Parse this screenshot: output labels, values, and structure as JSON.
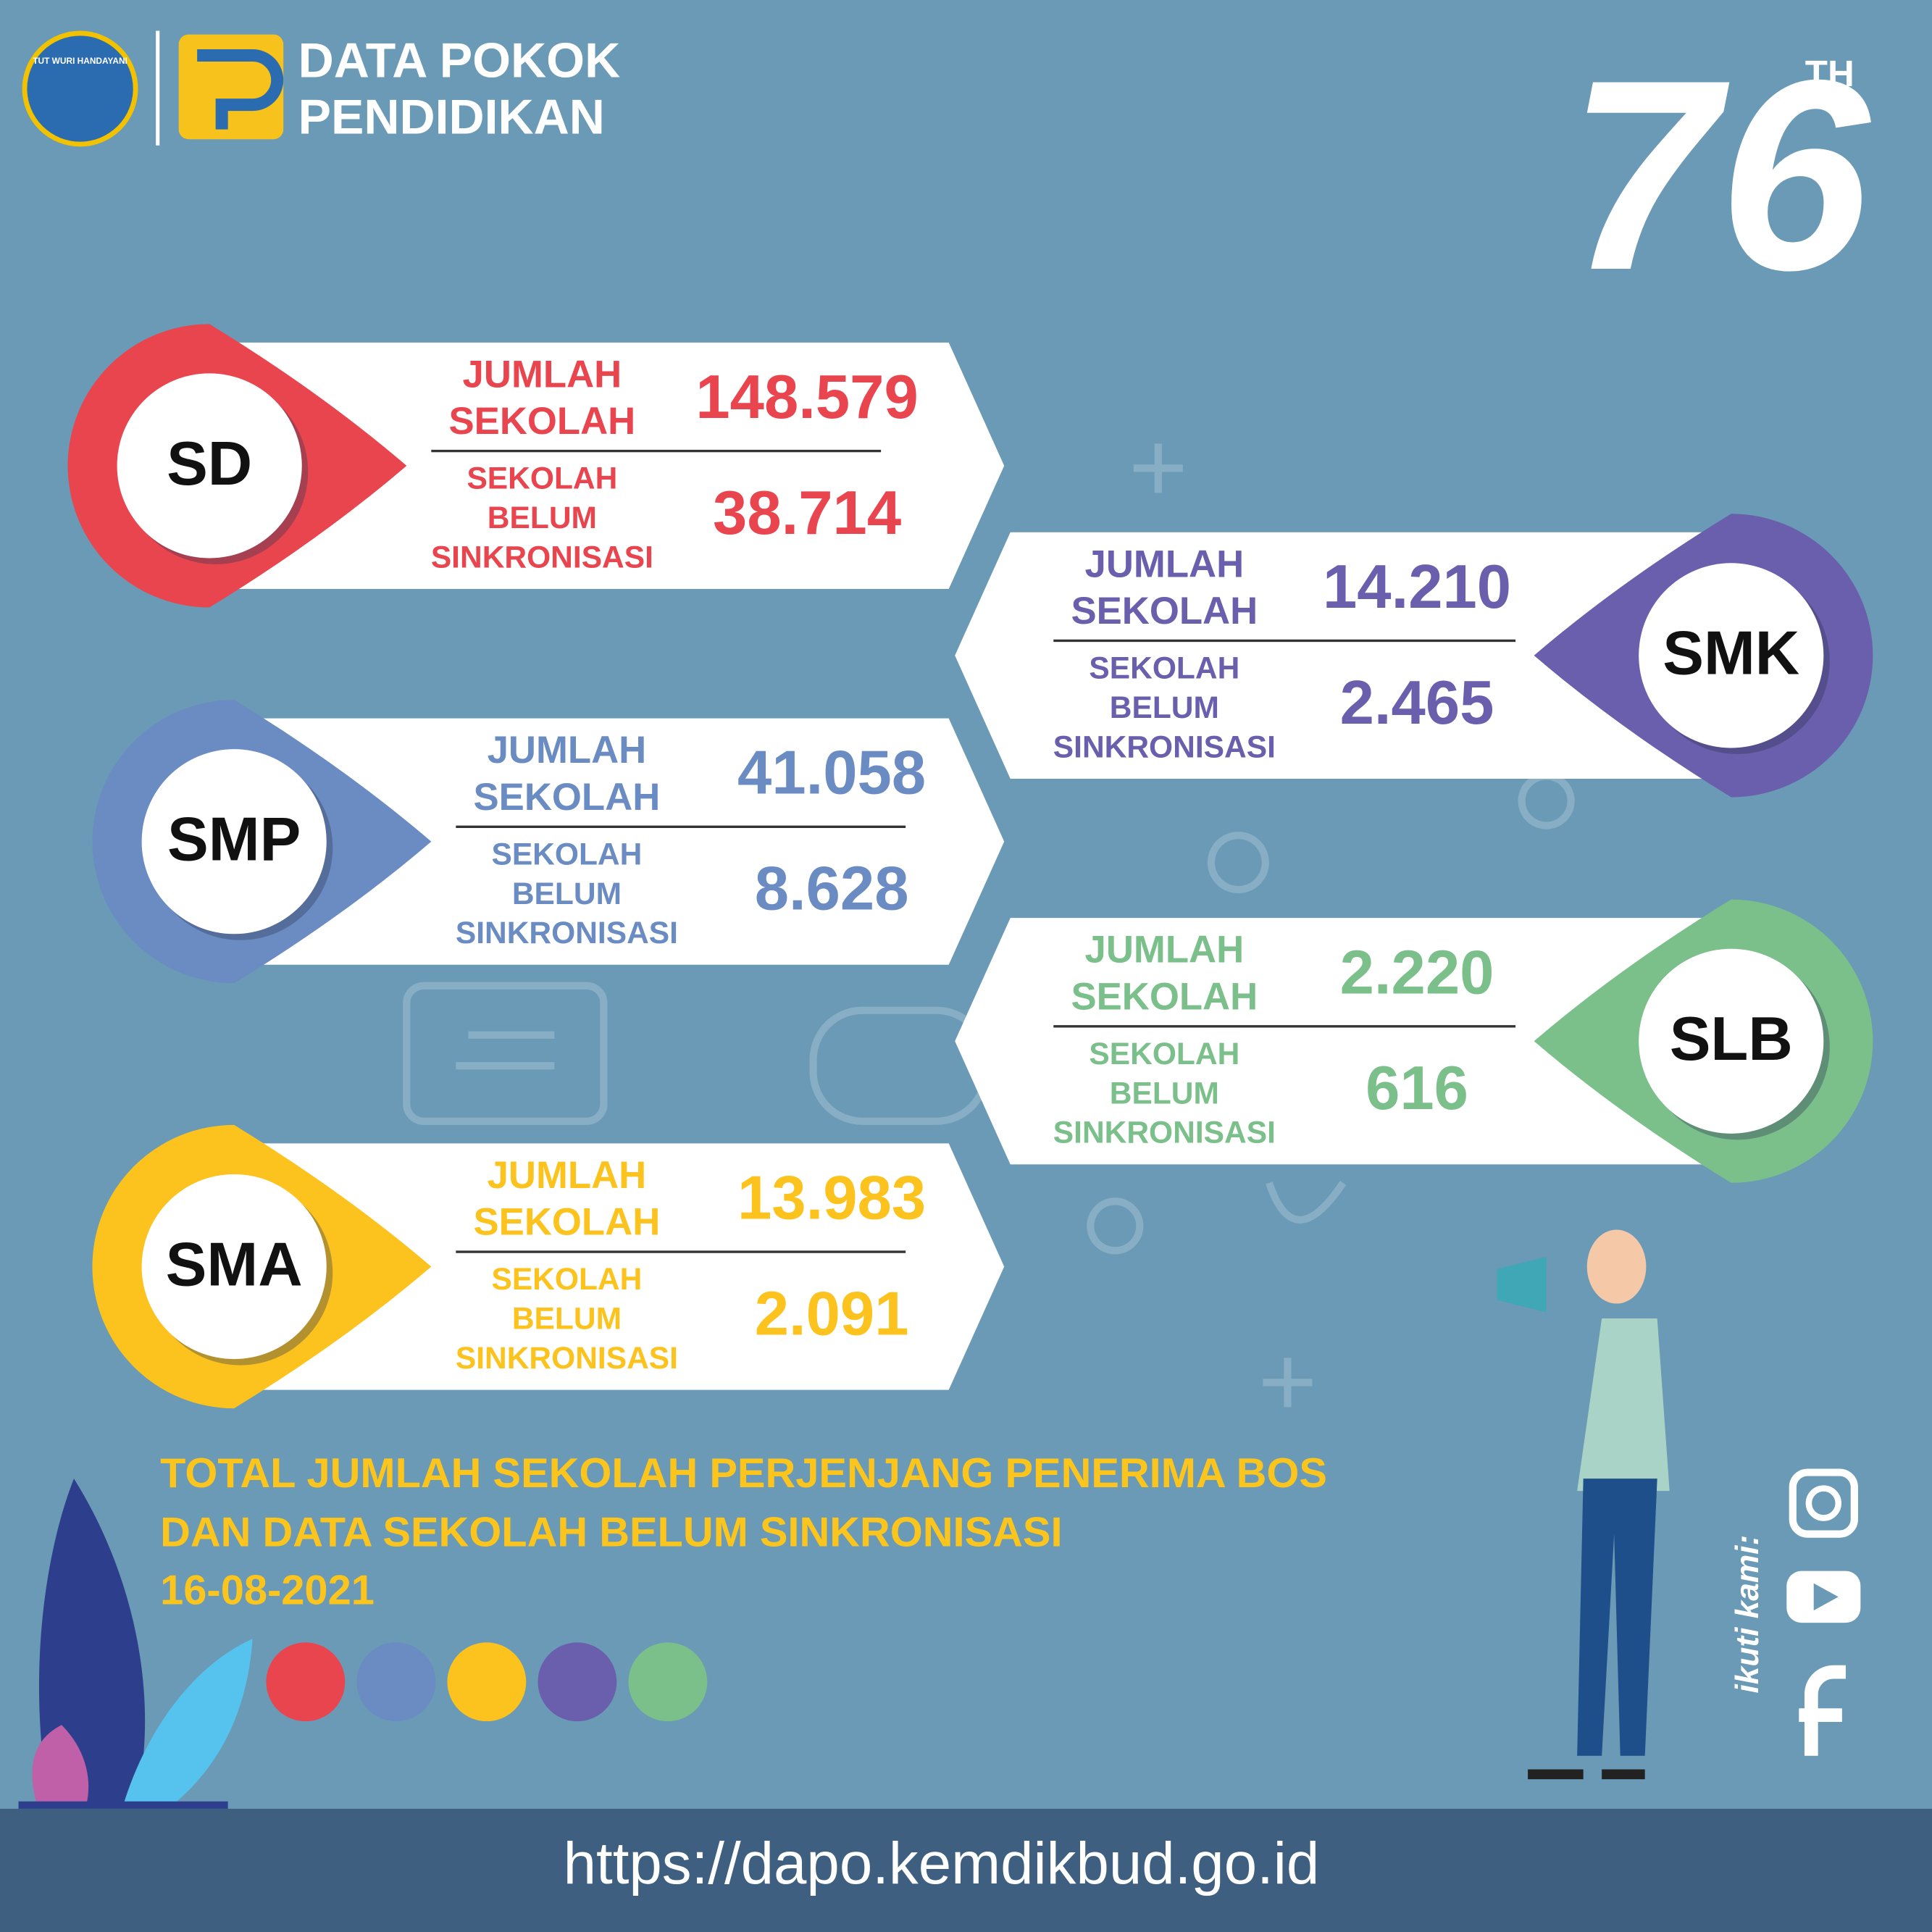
{
  "header": {
    "logo_text": "TUT WURI HANDAYANI",
    "title_lines": [
      "DATA POKOK",
      "PENDIDIKAN"
    ],
    "anniversary": "76",
    "anniversary_suffix": "TH"
  },
  "cards": [
    {
      "level": "SD",
      "color": "#e8454f",
      "jumlah_label": [
        "JUMLAH",
        "SEKOLAH"
      ],
      "jumlah_value": "148.579",
      "belum_label": [
        "SEKOLAH",
        "BELUM",
        "SINKRONISASI"
      ],
      "belum_value": "38.714"
    },
    {
      "level": "SMK",
      "color": "#6a5fad",
      "jumlah_label": [
        "JUMLAH",
        "SEKOLAH"
      ],
      "jumlah_value": "14.210",
      "belum_label": [
        "SEKOLAH",
        "BELUM",
        "SINKRONISASI"
      ],
      "belum_value": "2.465"
    },
    {
      "level": "SMP",
      "color": "#6a8cc2",
      "jumlah_label": [
        "JUMLAH",
        "SEKOLAH"
      ],
      "jumlah_value": "41.058",
      "belum_label": [
        "SEKOLAH",
        "BELUM",
        "SINKRONISASI"
      ],
      "belum_value": "8.628"
    },
    {
      "level": "SLB",
      "color": "#7bbf8a",
      "jumlah_label": [
        "JUMLAH",
        "SEKOLAH"
      ],
      "jumlah_value": "2.220",
      "belum_label": [
        "SEKOLAH",
        "BELUM",
        "SINKRONISASI"
      ],
      "belum_value": "616"
    },
    {
      "level": "SMA",
      "color": "#fcc31e",
      "jumlah_label": [
        "JUMLAH",
        "SEKOLAH"
      ],
      "jumlah_value": "13.983",
      "belum_label": [
        "SEKOLAH",
        "BELUM",
        "SINKRONISASI"
      ],
      "belum_value": "2.091"
    }
  ],
  "footer": {
    "caption_lines": [
      "TOTAL JUMLAH SEKOLAH PERJENJANG PENERIMA BOS",
      "DAN DATA SEKOLAH BELUM SINKRONISASI"
    ],
    "date": "16-08-2021",
    "follow": "ikuti kami:",
    "url": "https://dapo.kemdikbud.go.id"
  }
}
